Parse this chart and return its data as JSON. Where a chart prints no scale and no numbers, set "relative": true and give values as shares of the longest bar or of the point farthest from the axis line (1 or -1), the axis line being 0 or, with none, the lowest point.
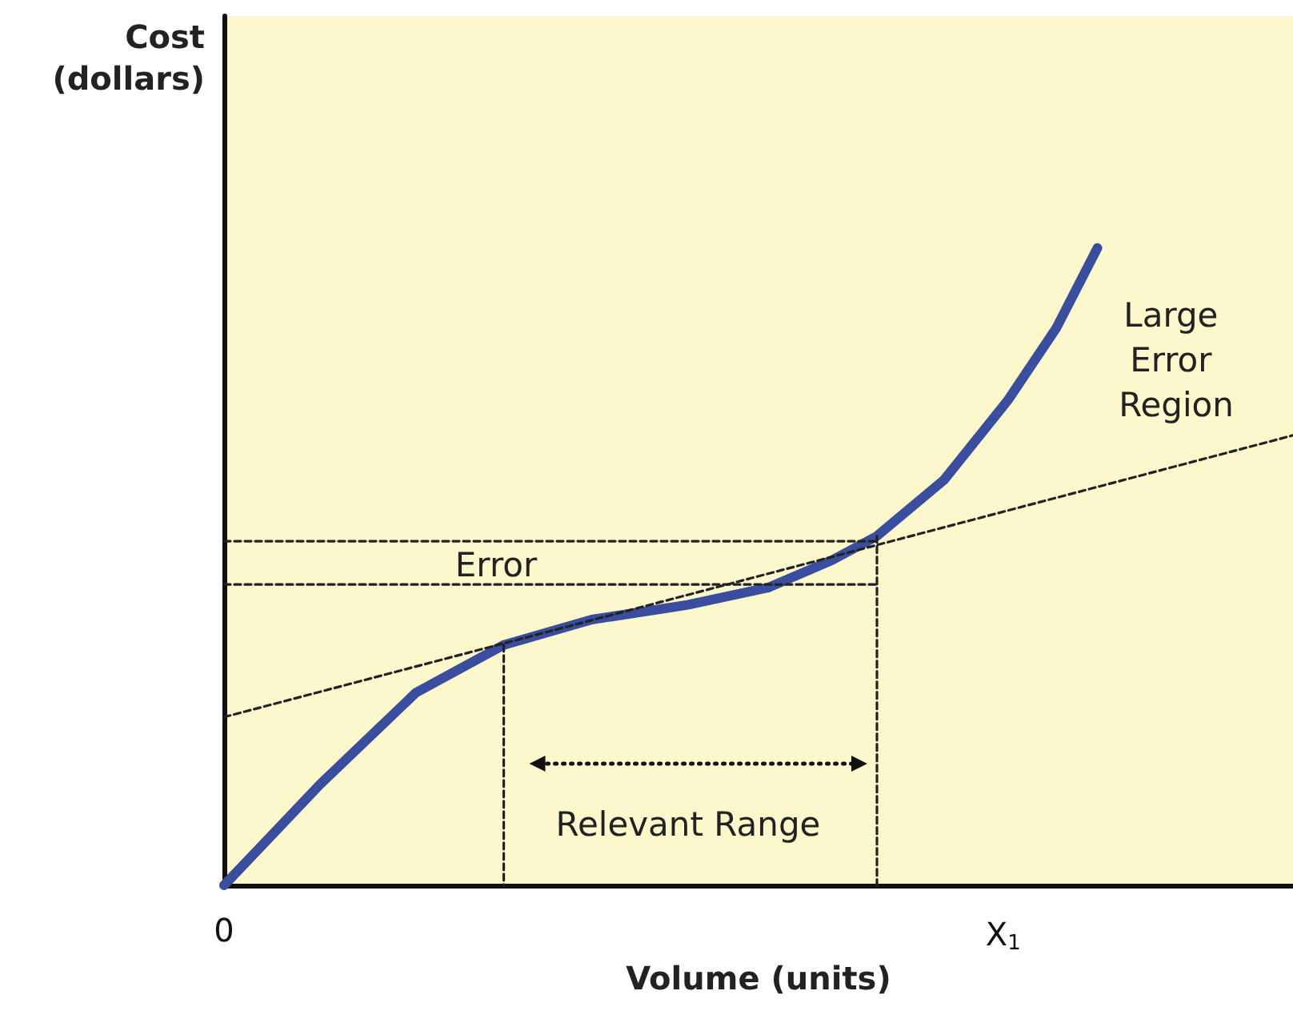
{
  "chart_data": {
    "type": "line",
    "relative": true,
    "xlabel": "Volume (units)",
    "ylabel": "Cost\n(dollars)",
    "xlim": [
      0,
      1.372
    ],
    "xticks": [
      {
        "value": 0,
        "label": "0"
      },
      {
        "value": 1,
        "label": "X$_{1}$"
      }
    ],
    "tick_labels": "x",
    "grid": false,
    "marker": "none",
    "series": [
      {
        "color": "#3a4ea0",
        "line_style": "solid",
        "x": [
          0,
          0.123,
          0.246,
          0.359,
          0.472,
          0.595,
          0.698,
          0.78,
          0.838,
          0.924,
          1.006,
          1.068,
          1.121
        ],
        "values": [
          0,
          0.158,
          0.302,
          0.377,
          0.417,
          0.44,
          0.467,
          0.51,
          0.548,
          0.636,
          0.761,
          0.874,
          1
        ]
      },
      {
        "color": "#222222",
        "line_style": "dashed",
        "x": [
          0,
          1.372
        ],
        "values": [
          0.264,
          0.706
        ]
      },
      {
        "color": "#222222",
        "line_style": "dashed",
        "x": [
          0.359,
          0.359
        ],
        "values": [
          0.377,
          0
        ]
      },
      {
        "color": "#222222",
        "line_style": "dashed",
        "x": [
          0.838,
          0.838
        ],
        "values": [
          0.548,
          0
        ]
      },
      {
        "color": "#222222",
        "line_style": "dashed",
        "x": [
          0,
          0.838
        ],
        "values": [
          0.54,
          0.54
        ]
      },
      {
        "color": "#222222",
        "line_style": "dashed",
        "x": [
          0,
          0.838
        ],
        "values": [
          0.472,
          0.472
        ]
      }
    ],
    "annotations": [
      "Error",
      "Large Error Region",
      "Relevant Range"
    ]
  }
}
